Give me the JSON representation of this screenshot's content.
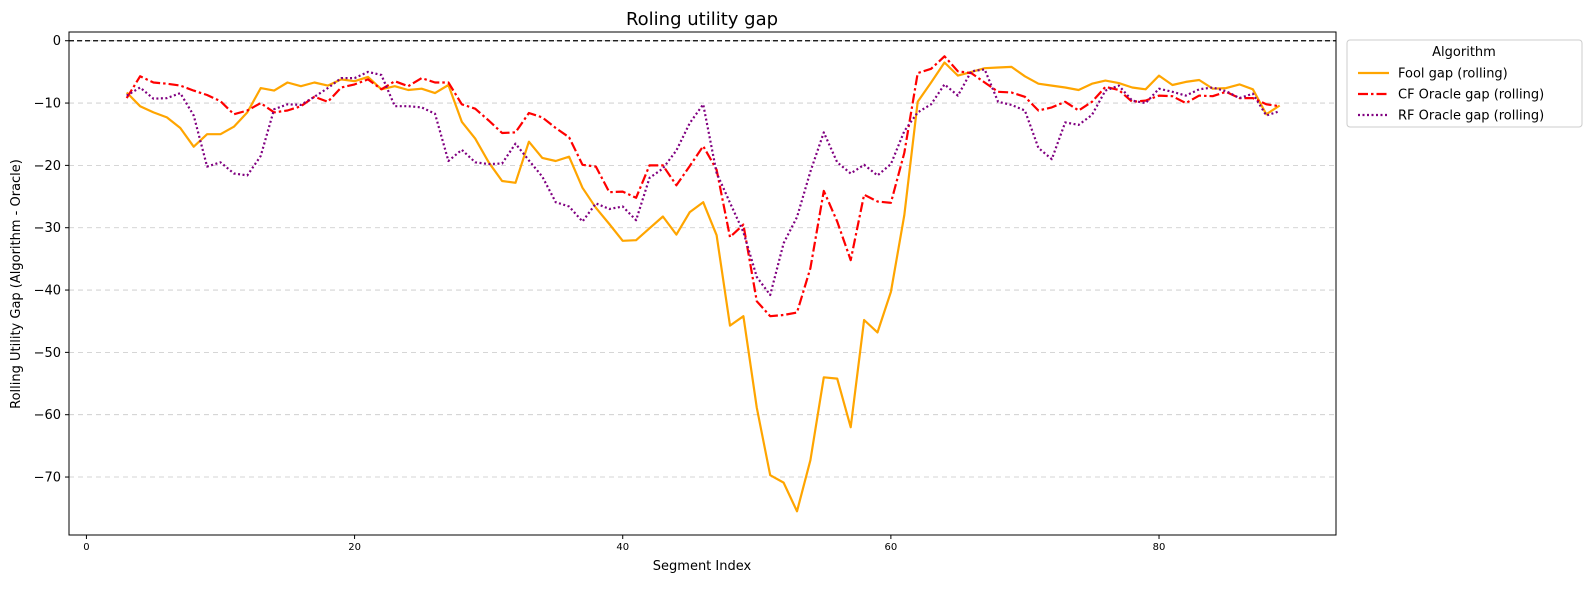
{
  "chart_data": {
    "type": "line",
    "title": "Roling utility gap",
    "xlabel": "Segment Index",
    "ylabel": "Rolling Utility Gap (Algorithm - Oracle)",
    "xlim": [
      -1.3,
      93.2
    ],
    "ylim": [
      -79.3,
      1.4
    ],
    "x_ticks": [
      0,
      20,
      40,
      60,
      80
    ],
    "y_ticks": [
      0,
      -10,
      -20,
      -30,
      -40,
      -50,
      -60,
      -70
    ],
    "grid": "horizontal dashed",
    "reference_line": {
      "y": 0,
      "style": "black dashed"
    },
    "legend_title": "Algorithm",
    "legend_position": "outside upper right",
    "series": [
      {
        "name": "Fool gap (rolling)",
        "color": "#FFA500",
        "style": "solid",
        "x": [
          3,
          4,
          5,
          6,
          7,
          8,
          9,
          10,
          11,
          12,
          13,
          14,
          15,
          16,
          17,
          18,
          19,
          20,
          21,
          22,
          23,
          24,
          25,
          26,
          27,
          28,
          29,
          30,
          31,
          32,
          33,
          34,
          35,
          36,
          37,
          38,
          39,
          40,
          41,
          42,
          43,
          44,
          45,
          46,
          47,
          48,
          49,
          50,
          51,
          52,
          53,
          54,
          55,
          56,
          57,
          58,
          59,
          60,
          61,
          62,
          63,
          64,
          65,
          66,
          67,
          68,
          69,
          70,
          71,
          72,
          73,
          74,
          75,
          76,
          77,
          78,
          79,
          80,
          81,
          82,
          83,
          84,
          85,
          86,
          87,
          88,
          89
        ],
        "y": [
          -8.3,
          -10.5,
          -11.5,
          -12.3,
          -14.0,
          -17.0,
          -15.0,
          -15.0,
          -13.8,
          -11.5,
          -7.6,
          -8.0,
          -6.7,
          -7.3,
          -6.7,
          -7.2,
          -6.2,
          -6.5,
          -5.8,
          -7.8,
          -7.3,
          -7.9,
          -7.7,
          -8.4,
          -7.1,
          -13.0,
          -15.7,
          -19.5,
          -22.5,
          -22.8,
          -16.2,
          -18.8,
          -19.3,
          -18.6,
          -23.6,
          -26.8,
          -29.4,
          -32.1,
          -32.0,
          -30.1,
          -28.2,
          -31.1,
          -27.5,
          -25.9,
          -31.2,
          -45.7,
          -44.2,
          -58.9,
          -69.7,
          -70.9,
          -75.5,
          -67.3,
          -54.0,
          -54.2,
          -62.0,
          -44.8,
          -46.8,
          -40.3,
          -28.0,
          -9.8,
          -6.7,
          -3.5,
          -5.6,
          -5.0,
          -4.4,
          -4.3,
          -4.2,
          -5.7,
          -6.9,
          -7.2,
          -7.5,
          -7.9,
          -6.9,
          -6.4,
          -6.8,
          -7.5,
          -7.8,
          -5.6,
          -7.1,
          -6.6,
          -6.3,
          -7.7,
          -7.6,
          -7.0,
          -7.8,
          -11.8,
          -10.4
        ]
      },
      {
        "name": "CF Oracle gap (rolling)",
        "color": "#FF0000",
        "style": "dash-dot",
        "x": [
          3,
          4,
          5,
          6,
          7,
          8,
          9,
          10,
          11,
          12,
          13,
          14,
          15,
          16,
          17,
          18,
          19,
          20,
          21,
          22,
          23,
          24,
          25,
          26,
          27,
          28,
          29,
          30,
          31,
          32,
          33,
          34,
          35,
          36,
          37,
          38,
          39,
          40,
          41,
          42,
          43,
          44,
          45,
          46,
          47,
          48,
          49,
          50,
          51,
          52,
          53,
          54,
          55,
          56,
          57,
          58,
          59,
          60,
          61,
          62,
          63,
          64,
          65,
          66,
          67,
          68,
          69,
          70,
          71,
          72,
          73,
          74,
          75,
          76,
          77,
          78,
          79,
          80,
          81,
          82,
          83,
          84,
          85,
          86,
          87,
          88,
          89
        ],
        "y": [
          -9.2,
          -5.7,
          -6.7,
          -6.9,
          -7.2,
          -8.0,
          -8.7,
          -9.7,
          -11.8,
          -11.2,
          -10.0,
          -11.5,
          -11.2,
          -10.5,
          -9.0,
          -9.8,
          -7.5,
          -7.0,
          -6.2,
          -7.8,
          -6.5,
          -7.3,
          -6.0,
          -6.7,
          -6.7,
          -10.2,
          -10.9,
          -12.8,
          -14.8,
          -14.7,
          -11.6,
          -12.3,
          -14.0,
          -15.5,
          -19.9,
          -20.2,
          -24.3,
          -24.2,
          -25.2,
          -20.0,
          -20.0,
          -23.2,
          -20.1,
          -16.9,
          -20.7,
          -31.5,
          -29.5,
          -41.8,
          -44.2,
          -44.0,
          -43.6,
          -36.5,
          -24.1,
          -29.0,
          -35.2,
          -24.7,
          -25.8,
          -26.0,
          -18.0,
          -5.2,
          -4.5,
          -2.5,
          -4.9,
          -5.2,
          -6.7,
          -8.2,
          -8.3,
          -9.0,
          -11.2,
          -10.7,
          -9.8,
          -11.2,
          -9.8,
          -7.4,
          -7.9,
          -9.8,
          -9.6,
          -8.8,
          -8.9,
          -10.0,
          -8.8,
          -8.9,
          -8.2,
          -9.2,
          -9.2,
          -10.2,
          -10.5
        ]
      },
      {
        "name": "RF Oracle gap (rolling)",
        "color": "#800080",
        "style": "dotted",
        "x": [
          3,
          4,
          5,
          6,
          7,
          8,
          9,
          10,
          11,
          12,
          13,
          14,
          15,
          16,
          17,
          18,
          19,
          20,
          21,
          22,
          23,
          24,
          25,
          26,
          27,
          28,
          29,
          30,
          31,
          32,
          33,
          34,
          35,
          36,
          37,
          38,
          39,
          40,
          41,
          42,
          43,
          44,
          45,
          46,
          47,
          48,
          49,
          50,
          51,
          52,
          53,
          54,
          55,
          56,
          57,
          58,
          59,
          60,
          61,
          62,
          63,
          64,
          65,
          66,
          67,
          68,
          69,
          70,
          71,
          72,
          73,
          74,
          75,
          76,
          77,
          78,
          79,
          80,
          81,
          82,
          83,
          84,
          85,
          86,
          87,
          88,
          89
        ],
        "y": [
          -8.8,
          -7.5,
          -9.3,
          -9.2,
          -8.4,
          -12.0,
          -20.2,
          -19.5,
          -21.3,
          -21.6,
          -18.5,
          -11.0,
          -10.2,
          -10.3,
          -9.0,
          -7.6,
          -6.0,
          -6.0,
          -5.0,
          -5.5,
          -10.5,
          -10.5,
          -10.7,
          -11.7,
          -19.3,
          -17.5,
          -19.5,
          -19.8,
          -19.7,
          -16.5,
          -19.2,
          -21.8,
          -25.9,
          -26.6,
          -29.0,
          -26.1,
          -27.0,
          -26.6,
          -28.8,
          -22.0,
          -20.5,
          -17.6,
          -13.2,
          -10.2,
          -21.2,
          -26.0,
          -30.7,
          -37.9,
          -40.8,
          -32.5,
          -28.3,
          -21.0,
          -14.7,
          -19.5,
          -21.3,
          -19.9,
          -21.6,
          -19.8,
          -14.5,
          -11.5,
          -10.2,
          -7.0,
          -8.8,
          -4.9,
          -4.6,
          -9.8,
          -10.3,
          -11.2,
          -17.2,
          -19.0,
          -13.1,
          -13.5,
          -11.9,
          -8.0,
          -7.2,
          -9.6,
          -10.0,
          -7.7,
          -8.2,
          -8.8,
          -7.8,
          -7.5,
          -8.1,
          -9.2,
          -8.5,
          -12.0,
          -11.3
        ]
      }
    ]
  }
}
